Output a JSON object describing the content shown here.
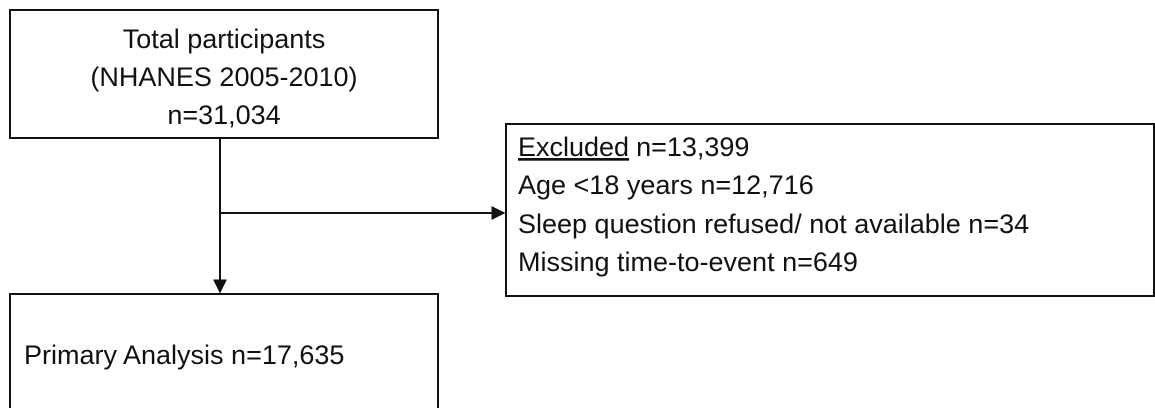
{
  "nodes": [
    {
      "lines": [
        "Total participants",
        "(NHANES 2005-2010)",
        "n=31,034"
      ]
    },
    {
      "heading": "Excluded",
      "count": "n=13,399",
      "lines": [
        "Age <18 years n=12,716",
        "Sleep question refused/ not available n=34",
        "Missing time-to-event n=649"
      ]
    },
    {
      "label": "Primary Analysis n=17,635"
    }
  ]
}
